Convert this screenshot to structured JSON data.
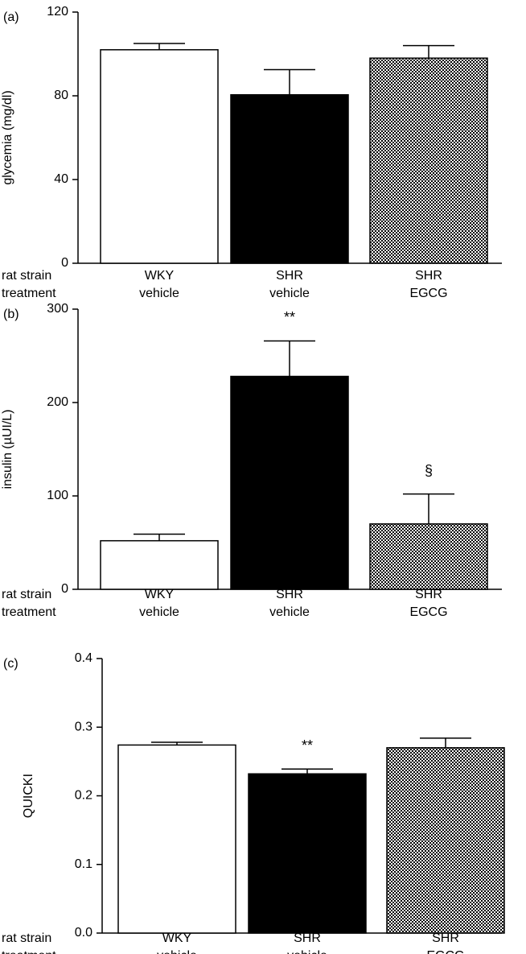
{
  "chart_data": [
    {
      "type": "bar",
      "panel_label": "(a)",
      "ylabel": "glycemia (mg/dl)",
      "ylim": [
        0,
        120
      ],
      "yticks": [
        "0",
        "40",
        "80",
        "120"
      ],
      "row_labels": [
        "rat strain",
        "treatment"
      ],
      "categories": [
        {
          "strain": "WKY",
          "treatment": "vehicle"
        },
        {
          "strain": "SHR",
          "treatment": "vehicle"
        },
        {
          "strain": "SHR",
          "treatment": "EGCG"
        }
      ],
      "values": [
        102,
        80.5,
        98
      ],
      "errors": [
        3,
        12,
        6
      ],
      "fills": [
        "white",
        "black",
        "checker"
      ],
      "annotations": [
        "",
        "",
        ""
      ]
    },
    {
      "type": "bar",
      "panel_label": "(b)",
      "ylabel": "insulin (µUI/L)",
      "ylim": [
        0,
        300
      ],
      "yticks": [
        "0",
        "100",
        "200",
        "300"
      ],
      "row_labels": [
        "rat strain",
        "treatment"
      ],
      "categories": [
        {
          "strain": "WKY",
          "treatment": "vehicle"
        },
        {
          "strain": "SHR",
          "treatment": "vehicle"
        },
        {
          "strain": "SHR",
          "treatment": "EGCG"
        }
      ],
      "values": [
        52,
        228,
        70
      ],
      "errors": [
        7,
        38,
        32
      ],
      "fills": [
        "white",
        "black",
        "checker"
      ],
      "annotations": [
        "",
        "**",
        "§"
      ]
    },
    {
      "type": "bar",
      "panel_label": "(c)",
      "ylabel": "QUICKI",
      "ylim": [
        0,
        0.4
      ],
      "yticks": [
        "0.0",
        "0.1",
        "0.2",
        "0.3",
        "0.4"
      ],
      "row_labels": [
        "rat strain",
        "treatment"
      ],
      "categories": [
        {
          "strain": "WKY",
          "treatment": "vehicle"
        },
        {
          "strain": "SHR",
          "treatment": "vehicle"
        },
        {
          "strain": "SHR",
          "treatment": "EGCG"
        }
      ],
      "values": [
        0.274,
        0.232,
        0.27
      ],
      "errors": [
        0.004,
        0.007,
        0.014
      ],
      "fills": [
        "white",
        "black",
        "checker"
      ],
      "annotations": [
        "",
        "**",
        ""
      ]
    }
  ]
}
